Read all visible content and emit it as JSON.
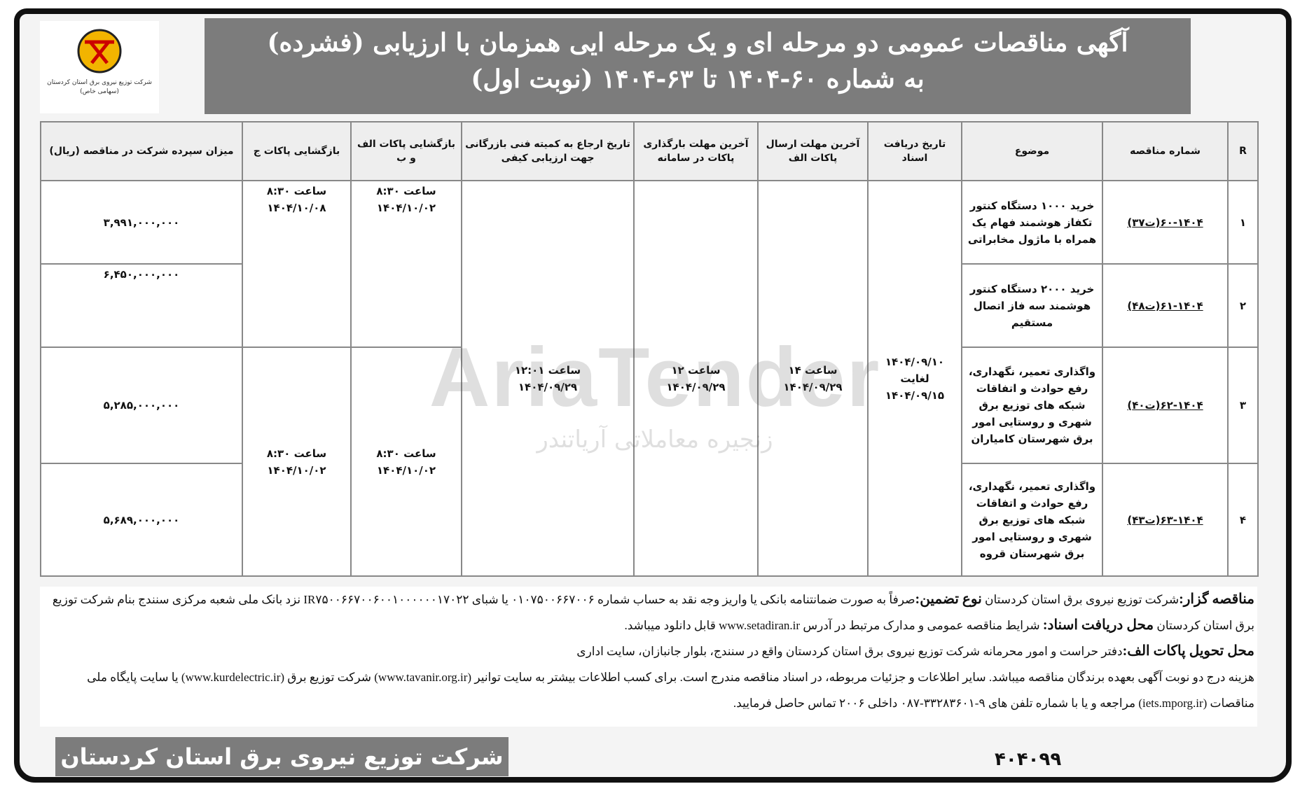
{
  "logo": {
    "caption": "شرکت توزیع نیروی برق استان کردستان (سهامی خاص)"
  },
  "header": {
    "line1": "آگهی مناقصات عمومی دو مرحله ای و یک مرحله ایی همزمان با ارزیابی (فشرده)",
    "line2": "به شماره ۶۰-۱۴۰۴ تا ۶۳-۱۴۰۴ (نوبت اول)"
  },
  "table": {
    "headers": [
      "R",
      "شماره مناقصه",
      "موضوع",
      "تاریخ دریافت اسناد",
      "آخرین مهلت ارسال پاکات الف",
      "آخرین مهلت بارگذاری پاکات در سامانه",
      "تاریخ ارجاع به کمیته فنی بازرگانی جهت ارزیابی کیفی",
      "بازگشایی پاکات الف و ب",
      "بازگشایی پاکات ج",
      "میزان سپرده شرکت در مناقصه (ریال)"
    ],
    "rows": [
      {
        "r": "۱",
        "number": "۶۰-۱۴۰۴(ت۳۷)",
        "subject": "خرید ۱۰۰۰ دستگاه کنتور تکفاز هوشمند فهام یک همراه با ماژول مخابراتی",
        "deposit": "۳,۹۹۱,۰۰۰,۰۰۰"
      },
      {
        "r": "۲",
        "number": "۶۱-۱۴۰۴(ت۴۸)",
        "subject": "خرید ۲۰۰۰ دستگاه کنتور هوشمند سه فاز اتصال مستقیم",
        "deposit": "۶,۴۵۰,۰۰۰,۰۰۰"
      },
      {
        "r": "۳",
        "number": "۶۲-۱۴۰۴(ت۴۰)",
        "subject": "واگذاری تعمیر، نگهداری، رفع حوادث و اتفاقات شبکه های توزیع برق شهری و روستایی امور برق شهرستان کامیاران",
        "deposit": "۵,۲۸۵,۰۰۰,۰۰۰"
      },
      {
        "r": "۴",
        "number": "۶۳-۱۴۰۴(ت۴۳)",
        "subject": "واگذاری تعمیر، نگهداری، رفع حوادث و اتفاقات شبکه های توزیع برق شهری و روستایی امور برق شهرستان قروه",
        "deposit": "۵,۶۸۹,۰۰۰,۰۰۰"
      }
    ],
    "receive": {
      "from": "۱۴۰۴/۰۹/۱۰",
      "until": "لغایت",
      "to": "۱۴۰۴/۰۹/۱۵"
    },
    "send_a": {
      "time": "ساعت ۱۴",
      "date": "۱۴۰۴/۰۹/۲۹"
    },
    "upload": {
      "time": "ساعت ۱۲",
      "date": "۱۴۰۴/۰۹/۲۹"
    },
    "refer": {
      "time": "ساعت ۱۲:۰۱",
      "date": "۱۴۰۴/۰۹/۲۹"
    },
    "open_ab": [
      {
        "time": "ساعت ۸:۳۰",
        "date": "۱۴۰۴/۱۰/۰۲"
      },
      {
        "time": "ساعت ۸:۳۰",
        "date": "۱۴۰۴/۱۰/۰۲"
      }
    ],
    "open_c": [
      {
        "time": "ساعت ۸:۳۰",
        "date": "۱۴۰۴/۱۰/۰۸"
      },
      {
        "time": "ساعت ۸:۳۰",
        "date": "۱۴۰۴/۱۰/۰۲"
      }
    ]
  },
  "text": {
    "p1_label": "مناقصه گزار:",
    "p1a": "شرکت توزیع نیروی برق استان کردستان ",
    "p1_label2": "نوع تضمین:",
    "p1b": "صرفاً به صورت ضمانتنامه بانکی یا واریز وجه نقد به حساب شماره ۰۱۰۷۵۰۰۶۶۷۰۰۶ یا شبای IR۷۵۰۰۶۶۷۰۰۶۰۰۱۰۰۰۰۰۰۱۷۰۲۲ نزد بانک ملی شعبه مرکزی سنندج بنام شرکت توزیع برق استان کردستان ",
    "p1_label3": "محل دریافت اسناد:",
    "p1c": " شرایط مناقصه عمومی و مدارک مرتبط در آدرس www.setadiran.ir قابل دانلود میباشد.",
    "p2_label": "محل تحویل پاکات الف:",
    "p2": "دفتر حراست و امور محرمانه شرکت توزیع نیروی برق استان کردستان واقع در سنندج، بلوار جانبازان، سایت اداری",
    "p3": "هزینه درج دو نوبت آگهی بعهده برندگان مناقصه میباشد. سایر اطلاعات و جزئیات مربوطه، در اسناد مناقصه مندرج است. برای کسب اطلاعات بیشتر به سایت توانیر (www.tavanir.org.ir) شرکت توزیع برق (www.kurdelectric.ir) یا سایت پایگاه ملی مناقصات (iets.mporg.ir) مراجعه و یا با شماره تلفن های ۹-۳۳۲۸۳۶۰۱-۰۸۷ داخلی ۲۰۰۶ تماس حاصل فرمایید."
  },
  "footer": {
    "company": "شرکت توزیع نیروی برق استان کردستان",
    "code": "۴۰۴۰۹۹"
  },
  "watermark": {
    "brand": "AriaTender",
    "tagline": "زنجیره معاملاتی آریاتندر"
  }
}
